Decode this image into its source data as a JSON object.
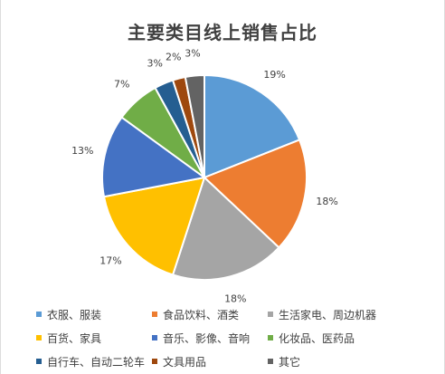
{
  "chart_data": {
    "type": "pie",
    "title": "主要类目线上销售占比",
    "categories": [
      "衣服、服装",
      "食品饮料、酒类",
      "生活家电、周边机器",
      "百货、家具",
      "音乐、影像、音响",
      "化妆品、医药品",
      "自行车、自动二轮车",
      "文具用品",
      "其它"
    ],
    "values": [
      19,
      18,
      18,
      17,
      13,
      7,
      3,
      2,
      3
    ],
    "data_labels": [
      "19%",
      "18%",
      "18%",
      "17%",
      "13%",
      "7%",
      "3%",
      "2%",
      "3%"
    ],
    "colors": [
      "#5B9BD5",
      "#ED7D31",
      "#A5A5A5",
      "#FFC000",
      "#4472C4",
      "#70AD47",
      "#255E91",
      "#9E480E",
      "#636363"
    ],
    "legend": "bottom"
  },
  "slice_order": [
    0,
    1,
    2,
    3,
    4,
    5,
    6,
    7,
    8
  ]
}
